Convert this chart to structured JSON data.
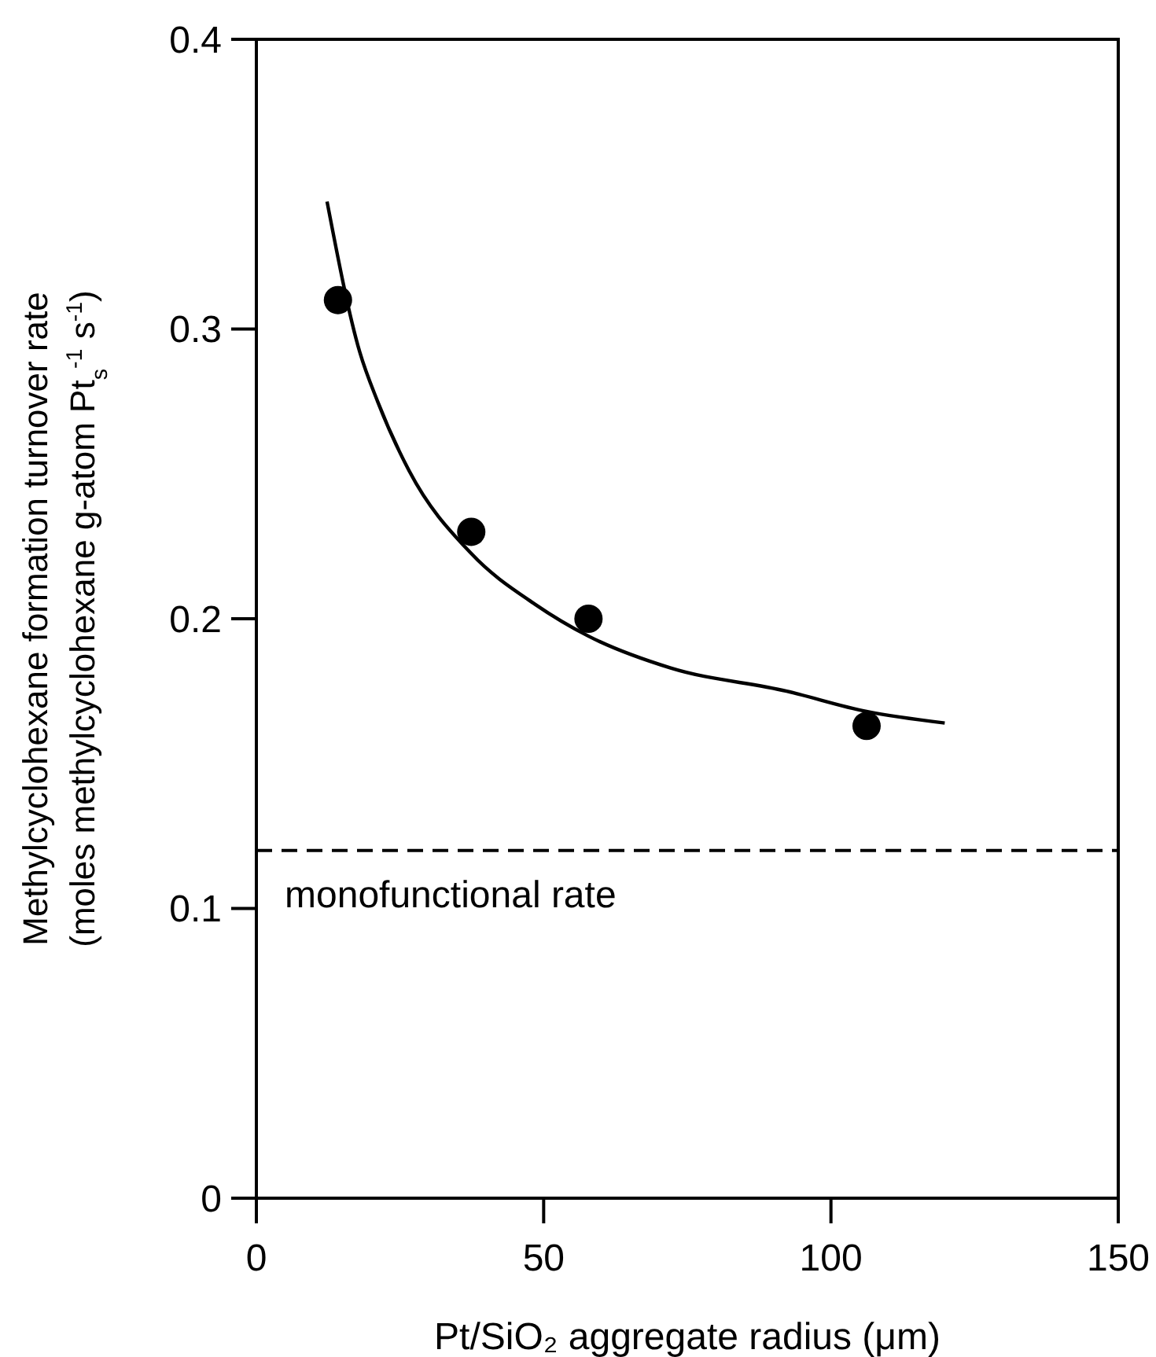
{
  "chart_data": {
    "type": "scatter",
    "xlabel": "Pt/SiO₂ aggregate radius (μm)",
    "ylabel": "Methylcyclohexane formation turnover rate\n(moles methylcyclohexane g-atom Pt$_{s}$$^{-1}$ s$^{-1}$)",
    "xlim": [
      0,
      150
    ],
    "xticks": [
      0,
      50,
      100,
      150
    ],
    "ylim": [
      0,
      0.4
    ],
    "yticks": [
      0,
      0.1,
      0.2,
      0.3,
      0.4
    ],
    "grid": false,
    "marker": "circle",
    "series": [
      {
        "color": "#000000",
        "x": [
          14.2,
          37.4,
          57.8,
          106.2
        ],
        "values": [
          0.31,
          0.23,
          0.2,
          0.163
        ]
      },
      {
        "type": "line",
        "color": "#000000",
        "marker": "none",
        "line_style": "solid",
        "x": [
          12.3,
          18,
          21.1,
          26.6,
          37.4,
          48.5,
          57.8,
          72.1,
          92.3,
          106.2,
          119.8
        ],
        "values": [
          0.344,
          0.292,
          0.275,
          0.251,
          0.2225,
          0.205,
          0.194,
          0.183,
          0.175,
          0.168,
          0.164
        ]
      }
    ],
    "ref_lines": [
      {
        "axis": "y",
        "value": 0.12,
        "label": "monofunctional rate",
        "color": "#000000",
        "line_style": "dashed"
      }
    ]
  }
}
